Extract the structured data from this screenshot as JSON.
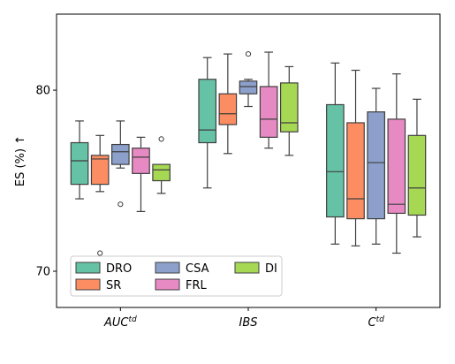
{
  "chart_data": {
    "type": "boxplot",
    "ylabel": "ES (%) ↑",
    "ylim": [
      68.0,
      84.2
    ],
    "yticks": [
      70,
      80
    ],
    "grid": false,
    "legend": {
      "position": "lower-left",
      "columns": 3
    },
    "categories": [
      {
        "base": "AUC",
        "sup": "td"
      },
      {
        "base": "IBS",
        "sup": ""
      },
      {
        "base": "C",
        "sup": "td"
      }
    ],
    "series": [
      {
        "name": "DRO",
        "color": "#66c2a5",
        "boxes": [
          {
            "whislo": 74.0,
            "q1": 74.8,
            "med": 76.1,
            "q3": 77.1,
            "whishi": 78.3,
            "fliers": []
          },
          {
            "whislo": 74.6,
            "q1": 77.1,
            "med": 77.8,
            "q3": 80.6,
            "whishi": 81.8,
            "fliers": []
          },
          {
            "whislo": 71.5,
            "q1": 73.0,
            "med": 75.5,
            "q3": 79.2,
            "whishi": 81.5,
            "fliers": []
          }
        ]
      },
      {
        "name": "SR",
        "color": "#fc8d62",
        "boxes": [
          {
            "whislo": 74.4,
            "q1": 74.8,
            "med": 76.2,
            "q3": 76.4,
            "whishi": 77.5,
            "fliers": [
              71.0
            ]
          },
          {
            "whislo": 76.5,
            "q1": 78.1,
            "med": 78.7,
            "q3": 79.8,
            "whishi": 82.0,
            "fliers": []
          },
          {
            "whislo": 71.4,
            "q1": 72.9,
            "med": 74.0,
            "q3": 78.2,
            "whishi": 81.1,
            "fliers": []
          }
        ]
      },
      {
        "name": "CSA",
        "color": "#8da0cb",
        "boxes": [
          {
            "whislo": 75.7,
            "q1": 75.9,
            "med": 76.6,
            "q3": 77.0,
            "whishi": 78.3,
            "fliers": [
              73.7
            ]
          },
          {
            "whislo": 79.1,
            "q1": 79.8,
            "med": 80.2,
            "q3": 80.5,
            "whishi": 80.6,
            "fliers": [
              82.0
            ]
          },
          {
            "whislo": 71.5,
            "q1": 72.9,
            "med": 76.0,
            "q3": 78.8,
            "whishi": 80.1,
            "fliers": []
          }
        ]
      },
      {
        "name": "FRL",
        "color": "#e78ac3",
        "boxes": [
          {
            "whislo": 73.3,
            "q1": 75.4,
            "med": 76.3,
            "q3": 76.8,
            "whishi": 77.4,
            "fliers": []
          },
          {
            "whislo": 76.8,
            "q1": 77.4,
            "med": 78.4,
            "q3": 80.2,
            "whishi": 82.1,
            "fliers": []
          },
          {
            "whislo": 71.0,
            "q1": 73.2,
            "med": 73.7,
            "q3": 78.4,
            "whishi": 80.9,
            "fliers": []
          }
        ]
      },
      {
        "name": "DI",
        "color": "#a6d854",
        "boxes": [
          {
            "whislo": 74.3,
            "q1": 75.0,
            "med": 75.6,
            "q3": 75.9,
            "whishi": 75.9,
            "fliers": [
              77.3
            ]
          },
          {
            "whislo": 76.4,
            "q1": 77.7,
            "med": 78.2,
            "q3": 80.4,
            "whishi": 81.3,
            "fliers": []
          },
          {
            "whislo": 71.9,
            "q1": 73.1,
            "med": 74.6,
            "q3": 77.5,
            "whishi": 79.5,
            "fliers": []
          }
        ]
      }
    ]
  }
}
